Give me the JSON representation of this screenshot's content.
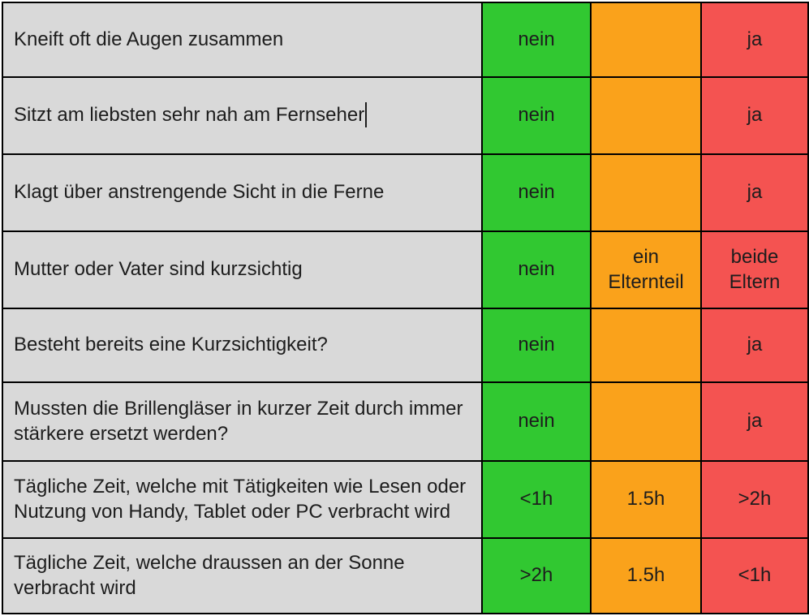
{
  "colors": {
    "question_bg": "#d9d9d9",
    "low_risk_green": "#31c831",
    "medium_risk_orange": "#faa21b",
    "high_risk_red": "#f45351",
    "border": "#000000",
    "text": "#1d1d1d"
  },
  "table": {
    "columns": [
      "question",
      "low-risk-answer",
      "medium-risk-answer",
      "high-risk-answer"
    ],
    "rows": [
      {
        "question": "Kneift oft die Augen zusammen",
        "low": "nein",
        "medium": "",
        "high": "ja",
        "caret_after_question": false
      },
      {
        "question": "Sitzt am liebsten sehr nah am Fernseher",
        "low": "nein",
        "medium": "",
        "high": "ja",
        "caret_after_question": true
      },
      {
        "question": "Klagt über anstrengende Sicht in die Ferne",
        "low": "nein",
        "medium": "",
        "high": "ja",
        "caret_after_question": false
      },
      {
        "question": "Mutter oder Vater sind kurzsichtig",
        "low": "nein",
        "medium": "ein Elternteil",
        "high": "beide Eltern",
        "caret_after_question": false
      },
      {
        "question": "Besteht bereits eine Kurzsichtigkeit?",
        "low": "nein",
        "medium": "",
        "high": "ja",
        "caret_after_question": false
      },
      {
        "question": "Mussten die Brillengläser in kurzer Zeit durch immer stärkere ersetzt werden?",
        "low": "nein",
        "medium": "",
        "high": "ja",
        "caret_after_question": false
      },
      {
        "question": "Tägliche Zeit, welche mit Tätigkeiten wie Lesen oder Nutzung von Handy, Tablet oder PC verbracht wird",
        "low": "<1h",
        "medium": "1.5h",
        "high": ">2h",
        "caret_after_question": false
      },
      {
        "question": "Tägliche Zeit, welche draussen an der Sonne verbracht wird",
        "low": ">2h",
        "medium": "1.5h",
        "high": "<1h",
        "caret_after_question": false
      }
    ]
  }
}
